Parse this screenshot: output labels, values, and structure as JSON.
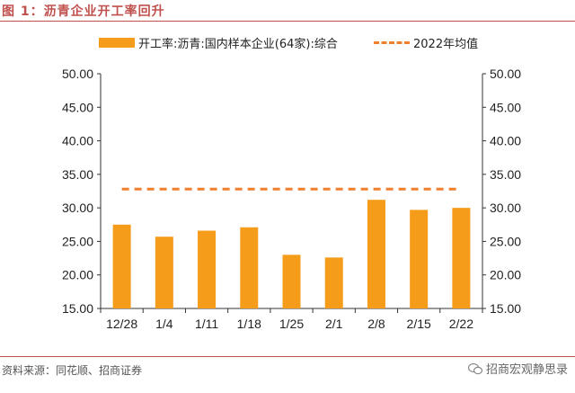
{
  "figure_title": "图 1：沥青企业开工率回升",
  "source": "资料来源：同花顺、招商证券",
  "watermark": "招商宏观静思录",
  "colors": {
    "bar": "#f59c1a",
    "dash": "#f08030",
    "accent": "#c0504d"
  },
  "chart_data": {
    "type": "bar",
    "categories": [
      "12/28",
      "1/4",
      "1/11",
      "1/18",
      "1/25",
      "2/1",
      "2/8",
      "2/15",
      "2/22"
    ],
    "series": [
      {
        "name": "开工率:沥青:国内样本企业(64家):综合",
        "type": "bar",
        "values": [
          27.5,
          25.7,
          26.6,
          27.1,
          23.0,
          22.6,
          31.2,
          29.7,
          30.0
        ]
      },
      {
        "name": "2022年均值",
        "type": "line-dashed",
        "values": [
          32.8,
          32.8,
          32.8,
          32.8,
          32.8,
          32.8,
          32.8,
          32.8,
          32.8
        ]
      }
    ],
    "ylim": [
      15,
      50
    ],
    "yticks": [
      "15.00",
      "20.00",
      "25.00",
      "30.00",
      "35.00",
      "40.00",
      "45.00",
      "50.00"
    ],
    "secondary_yticks": [
      "15.00",
      "20.00",
      "25.00",
      "30.00",
      "35.00",
      "40.00",
      "45.00",
      "50.00"
    ],
    "legend_position": "top",
    "grid": false
  }
}
